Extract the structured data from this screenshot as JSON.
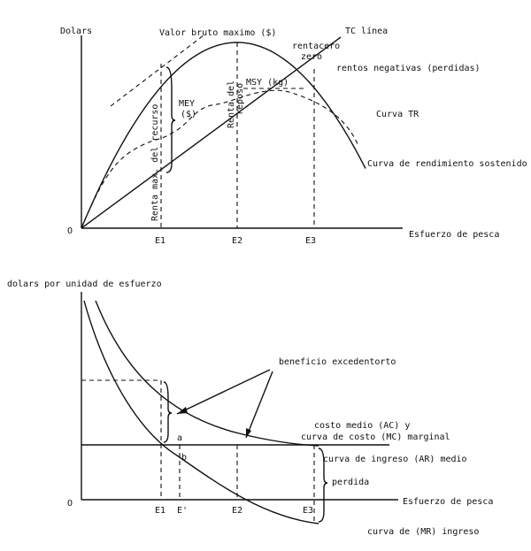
{
  "top": {
    "y_axis_label": "Dolars",
    "origin": "O",
    "x_axis_label": "Esfuerzo de pesca",
    "ticks": [
      "E1",
      "E2",
      "E3"
    ],
    "labels": {
      "max_value": "Valor bruto maximo ($)",
      "tc": "TC línea",
      "rent_zero_1": "rentacero",
      "rent_zero_2": "zero",
      "negative": "rentos negativas (perdidas)",
      "tr": "Curva TR",
      "sustained": "Curva de rendimiento sostenido",
      "mey_1": "MEY",
      "mey_2": "($)",
      "msy": "MSY (kg)",
      "max_rent": "Renta max. del recurso",
      "rest_rent_1": "Renta del",
      "rest_rent_2": "reposo"
    }
  },
  "bottom": {
    "y_axis_label": "dolars por unidad de esfuerzo",
    "origin": "O",
    "x_axis_label": "Esfuerzo de pesca",
    "ticks": [
      "E1",
      "E'",
      "E2",
      "E3"
    ],
    "labels": {
      "surplus": "beneficio excedentorto",
      "ac_1": "costo medio (AC) y",
      "ac_2": "curva de costo (MC) marginal",
      "ar": "curva de ingreso (AR) medio",
      "loss": "perdida",
      "mr": "curva de (MR) ingreso",
      "a": "a",
      "b": "b"
    }
  }
}
